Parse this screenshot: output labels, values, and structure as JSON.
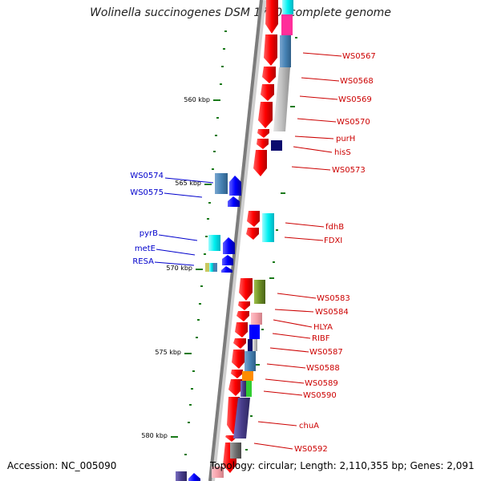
{
  "title": "Wolinella succinogenes DSM 1740, complete genome",
  "accession": "Accession: NC_005090",
  "topology": "Topology: circular; Length: 2,110,355 bp; Genes: 2,091",
  "colors": {
    "forward": "#ff0000",
    "reverse": "#0000ff",
    "fwd_label": "#cc0000",
    "rev_label": "#0000cc",
    "tick": "#1a7a1a",
    "backbone": "#8a8a8a"
  },
  "ticks": [
    "560 kbp",
    "565 kbp",
    "570 kbp",
    "575 kbp",
    "580 kbp"
  ],
  "forward_labels": [
    "WS0567",
    "WS0568",
    "WS0569",
    "WS0570",
    "purH",
    "hisS",
    "WS0573",
    "fdhB",
    "FDXI",
    "WS0583",
    "WS0584",
    "HLYA",
    "RIBF",
    "WS0587",
    "WS0588",
    "WS0589",
    "WS0590",
    "chuA",
    "WS0592"
  ],
  "reverse_labels": [
    "WS0574",
    "WS0575",
    "pyrB",
    "metE",
    "RESA"
  ]
}
